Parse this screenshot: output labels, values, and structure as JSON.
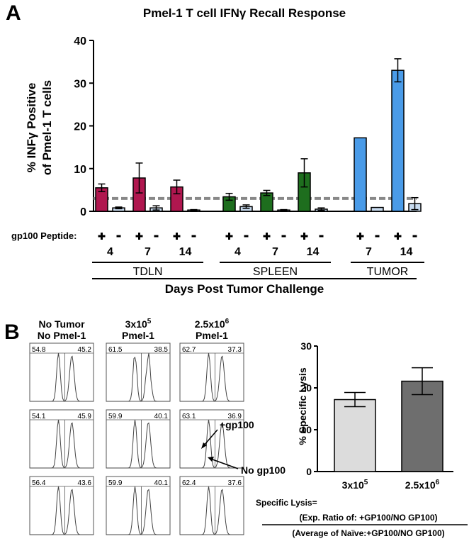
{
  "panels": {
    "a": "A",
    "b": "B"
  },
  "chart_data": [
    {
      "type": "bar",
      "title": "Pmel-1 T cell IFNγ Recall Response",
      "ylabel_line1": "% INFγ Positive",
      "ylabel_line2": "of Pmel-1 T cells",
      "xlabel": "Days Post Tumor Challenge",
      "ylim": [
        0,
        40
      ],
      "yticks": [
        0,
        10,
        20,
        30,
        40
      ],
      "peptide_label": "gp100 Peptide:",
      "threshold": 3,
      "colors": {
        "TDLN": "#b0174f",
        "SPLEEN": "#1e6e1e",
        "TUMOR": "#4a9be8",
        "neg": "#c9dcf0"
      },
      "groups": [
        {
          "name": "TDLN",
          "days": [
            {
              "day": "4",
              "plus": 5.5,
              "plus_err": 0.9,
              "minus": 0.8,
              "minus_err": 0.2
            },
            {
              "day": "7",
              "plus": 7.8,
              "plus_err": 3.5,
              "minus": 0.8,
              "minus_err": 0.5
            },
            {
              "day": "14",
              "plus": 5.7,
              "plus_err": 1.6,
              "minus": 0.3,
              "minus_err": 0.1
            }
          ]
        },
        {
          "name": "SPLEEN",
          "days": [
            {
              "day": "4",
              "plus": 3.4,
              "plus_err": 0.8,
              "minus": 1.1,
              "minus_err": 0.4
            },
            {
              "day": "7",
              "plus": 4.3,
              "plus_err": 0.6,
              "minus": 0.3,
              "minus_err": 0.1
            },
            {
              "day": "14",
              "plus": 9.0,
              "plus_err": 3.3,
              "minus": 0.5,
              "minus_err": 0.3
            }
          ]
        },
        {
          "name": "TUMOR",
          "days": [
            {
              "day": "7",
              "plus": 17.2,
              "plus_err": 0,
              "minus": 0.9,
              "minus_err": 0
            },
            {
              "day": "14",
              "plus": 33.0,
              "plus_err": 2.7,
              "minus": 1.8,
              "minus_err": 1.4
            }
          ]
        }
      ]
    },
    {
      "type": "bar",
      "ylabel": "% Specific Lysis",
      "ylim": [
        0,
        30
      ],
      "yticks": [
        0,
        10,
        20,
        30
      ],
      "categories": [
        "3x10",
        "2.5x10"
      ],
      "superscripts": [
        "5",
        "6"
      ],
      "values": [
        17.2,
        21.6
      ],
      "errors": [
        1.7,
        3.2
      ],
      "colors": [
        "#dcdcdc",
        "#6e6e6e"
      ]
    }
  ],
  "histograms": {
    "columns": [
      {
        "line1": "No Tumor",
        "line2": "No Pmel-1",
        "sup": ""
      },
      {
        "line1": "3x10",
        "line2": "Pmel-1",
        "sup": "5"
      },
      {
        "line1": "2.5x10",
        "line2": "Pmel-1",
        "sup": "6"
      }
    ],
    "values": [
      [
        [
          "54.8",
          "45.2"
        ],
        [
          "61.5",
          "38.5"
        ],
        [
          "62.7",
          "37.3"
        ]
      ],
      [
        [
          "54.1",
          "45.9"
        ],
        [
          "59.9",
          "40.1"
        ],
        [
          "63.1",
          "36.9"
        ]
      ],
      [
        [
          "56.4",
          "43.6"
        ],
        [
          "59.9",
          "40.1"
        ],
        [
          "62.4",
          "37.6"
        ]
      ]
    ],
    "annotations": {
      "plus": "+gp100",
      "none": "No gp100"
    }
  },
  "formula": {
    "label": "Specific Lysis=",
    "numerator": "(Exp. Ratio of: +GP100/NO GP100)",
    "denominator": "(Average of Naïve:+GP100/NO GP100)"
  }
}
